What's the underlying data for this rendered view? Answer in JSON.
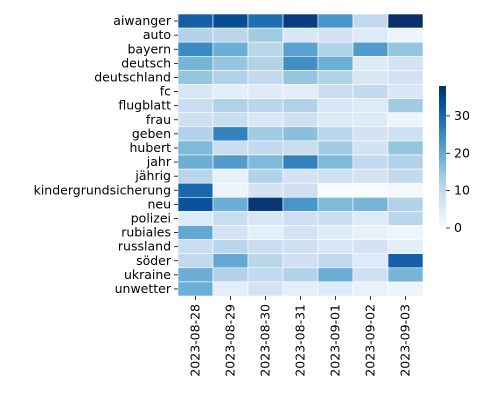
{
  "chart_data": {
    "type": "heatmap",
    "title": "",
    "xlabel": "",
    "ylabel": "",
    "x": [
      "2023-08-28",
      "2023-08-29",
      "2023-08-30",
      "2023-08-31",
      "2023-09-01",
      "2023-09-02",
      "2023-09-03"
    ],
    "y": [
      "aiwanger",
      "auto",
      "bayern",
      "deutsch",
      "deutschland",
      "fc",
      "flugblatt",
      "frau",
      "geben",
      "hubert",
      "jahr",
      "jährig",
      "kindergrundsicherung",
      "neu",
      "polizei",
      "rubiales",
      "russland",
      "söder",
      "ukraine",
      "unwetter"
    ],
    "values": [
      [
        31,
        34,
        29,
        36,
        23,
        10,
        39
      ],
      [
        12,
        11,
        14,
        6,
        7,
        5,
        2
      ],
      [
        25,
        19,
        11,
        21,
        12,
        22,
        15
      ],
      [
        18,
        15,
        12,
        24,
        19,
        5,
        7
      ],
      [
        15,
        12,
        10,
        15,
        12,
        6,
        7
      ],
      [
        6,
        4,
        5,
        4,
        9,
        10,
        6
      ],
      [
        9,
        12,
        11,
        12,
        6,
        5,
        14
      ],
      [
        8,
        9,
        6,
        8,
        5,
        5,
        2
      ],
      [
        12,
        26,
        14,
        16,
        11,
        7,
        8
      ],
      [
        17,
        9,
        10,
        9,
        14,
        7,
        15
      ],
      [
        19,
        22,
        17,
        26,
        17,
        10,
        12
      ],
      [
        11,
        3,
        12,
        7,
        8,
        7,
        10
      ],
      [
        30,
        2,
        7,
        8,
        0,
        0,
        1
      ],
      [
        33,
        19,
        37,
        23,
        17,
        18,
        12
      ],
      [
        5,
        9,
        6,
        8,
        9,
        5,
        11
      ],
      [
        20,
        7,
        4,
        7,
        5,
        3,
        2
      ],
      [
        9,
        11,
        9,
        8,
        6,
        7,
        4
      ],
      [
        10,
        20,
        11,
        8,
        10,
        5,
        31
      ],
      [
        19,
        12,
        10,
        12,
        19,
        8,
        18
      ],
      [
        19,
        4,
        7,
        4,
        5,
        3,
        2
      ]
    ],
    "colorscale": "Blues",
    "vmin": 0,
    "vmax": 38,
    "colorbar_ticks": [
      0,
      10,
      20,
      30
    ],
    "grid": false,
    "cell_border_color": "#ffffff"
  }
}
